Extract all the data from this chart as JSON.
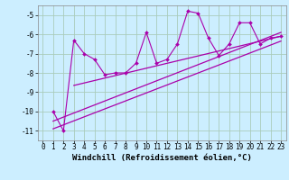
{
  "title": "",
  "xlabel": "Windchill (Refroidissement éolien,°C)",
  "ylabel": "",
  "bg_color": "#cceeff",
  "grid_color": "#aaccbb",
  "line_color": "#aa00aa",
  "marker_color": "#aa00aa",
  "xlim": [
    -0.5,
    23.5
  ],
  "ylim": [
    -11.5,
    -4.5
  ],
  "yticks": [
    -11,
    -10,
    -9,
    -8,
    -7,
    -6,
    -5
  ],
  "xticks": [
    0,
    1,
    2,
    3,
    4,
    5,
    6,
    7,
    8,
    9,
    10,
    11,
    12,
    13,
    14,
    15,
    16,
    17,
    18,
    19,
    20,
    21,
    22,
    23
  ],
  "scatter_x": [
    1,
    2,
    3,
    4,
    5,
    6,
    7,
    8,
    9,
    10,
    11,
    12,
    13,
    14,
    15,
    16,
    17,
    18,
    19,
    20,
    21,
    22,
    23
  ],
  "scatter_y": [
    -10.0,
    -11.0,
    -6.3,
    -7.0,
    -7.3,
    -8.1,
    -8.0,
    -8.0,
    -7.5,
    -5.9,
    -7.5,
    -7.3,
    -6.5,
    -4.8,
    -4.9,
    -6.2,
    -7.1,
    -6.5,
    -5.4,
    -5.4,
    -6.5,
    -6.2,
    -6.1
  ],
  "trend1_x": [
    1,
    23
  ],
  "trend1_y": [
    -10.5,
    -5.9
  ],
  "trend2_x": [
    1,
    23
  ],
  "trend2_y": [
    -10.9,
    -6.35
  ],
  "trend3_x": [
    3,
    23
  ],
  "trend3_y": [
    -8.65,
    -6.1
  ],
  "font_family": "monospace",
  "tick_fontsize": 5.5,
  "label_fontsize": 6.5
}
